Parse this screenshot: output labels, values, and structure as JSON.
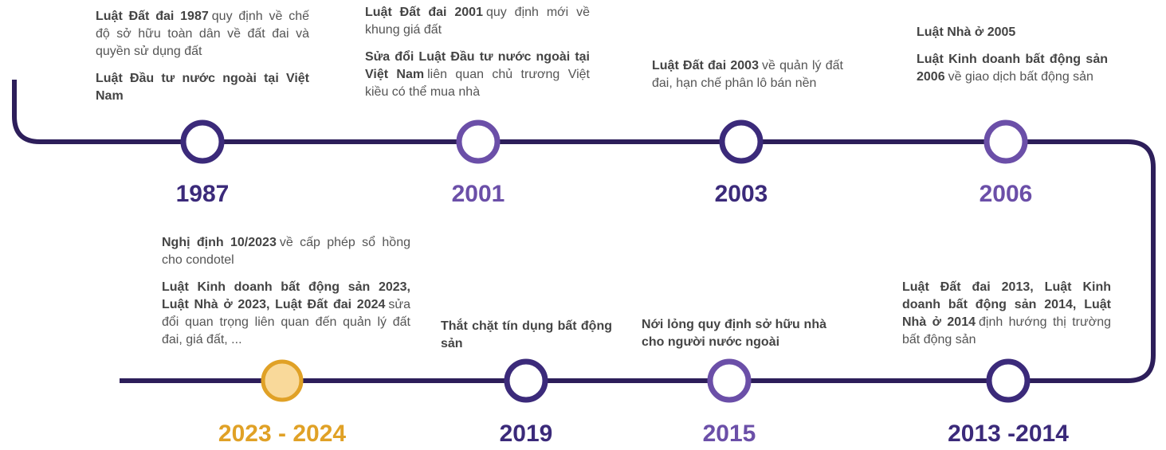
{
  "timeline": {
    "items": [
      {
        "year": "1987",
        "color": "#3b2a7a",
        "paragraphs": [
          {
            "bold": "Luật Đất đai 1987",
            "rest": "quy định về chế độ sở hữu toàn dân về đất đai và quyền sử dụng đất"
          },
          {
            "bold": "Luật Đầu tư nước ngoài tại Việt Nam"
          }
        ]
      },
      {
        "year": "2001",
        "color": "#6b4fa8",
        "paragraphs": [
          {
            "bold": "Luật Đất đai 2001",
            "rest": "quy định mới về khung giá đất"
          },
          {
            "bold": "Sửa đổi Luật Đầu tư nước ngoài tại Việt Nam",
            "rest": "liên quan chủ trương Việt kiều có thể mua nhà"
          }
        ]
      },
      {
        "year": "2003",
        "color": "#3b2a7a",
        "paragraphs": [
          {
            "bold": "Luật Đất đai 2003",
            "rest": "về quản lý đất đai, hạn chế phân lô bán nền"
          }
        ]
      },
      {
        "year": "2006",
        "color": "#6b4fa8",
        "paragraphs": [
          {
            "bold": "Luật Nhà ở 2005"
          },
          {
            "bold": "Luật Kinh doanh bất động sản 2006",
            "rest": "về giao dịch bất động sản"
          }
        ]
      },
      {
        "year": "2023 - 2024",
        "color": "#e0a126",
        "fill": "#f9d99a",
        "paragraphs": [
          {
            "bold": "Nghị định 10/2023",
            "rest": "về cấp phép sổ hồng cho condotel"
          },
          {
            "bold": "Luật Kinh doanh bất động sản 2023, Luật Nhà ở 2023, Luật Đất đai 2024",
            "rest": "sửa đổi quan trọng liên quan đến quản lý đất đai, giá đất, ..."
          }
        ]
      },
      {
        "year": "2019",
        "color": "#3b2a7a",
        "paragraphs": [
          {
            "bold": "Thắt chặt tín dụng bất động sản"
          }
        ]
      },
      {
        "year": "2015",
        "color": "#6b4fa8",
        "paragraphs": [
          {
            "bold": "Nới lỏng quy định sở hữu nhà cho người nước ngoài"
          }
        ]
      },
      {
        "year": "2013 -2014",
        "color": "#3b2a7a",
        "paragraphs": [
          {
            "bold": "Luật Đất đai 2013, Luật Kinh doanh bất động sản 2014, Luật Nhà ở 2014",
            "rest": "định hướng thị trường bất động sản"
          }
        ]
      }
    ]
  }
}
